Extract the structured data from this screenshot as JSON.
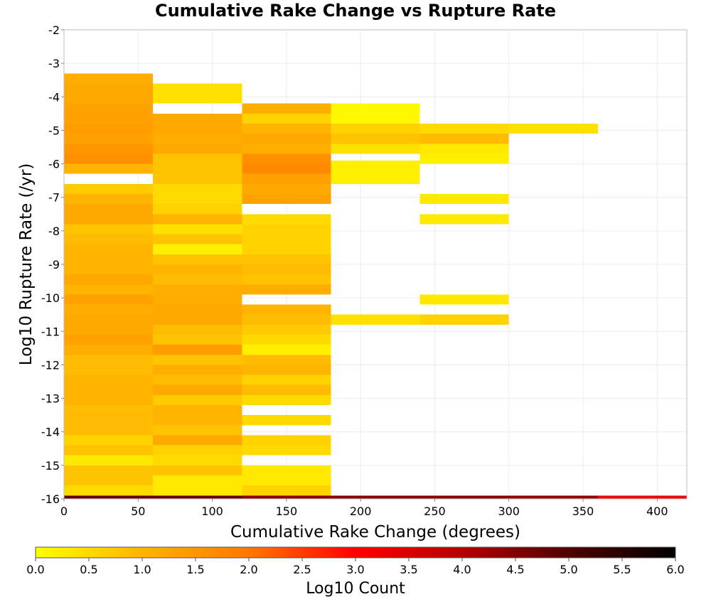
{
  "chart_data": {
    "type": "heatmap",
    "title": "Cumulative Rake Change vs Rupture Rate",
    "xlabel": "Cumulative Rake Change (degrees)",
    "ylabel": "Log10 Rupture Rate (/yr)",
    "xlim": [
      0,
      420
    ],
    "ylim": [
      -16,
      -2
    ],
    "xticks": [
      0,
      50,
      100,
      150,
      200,
      250,
      300,
      350,
      400
    ],
    "yticks": [
      -2,
      -3,
      -4,
      -5,
      -6,
      -7,
      -8,
      -9,
      -10,
      -11,
      -12,
      -13,
      -14,
      -15,
      -16
    ],
    "x_bin_width": 60,
    "y_bin_height": 0.3,
    "grid": true,
    "colorbar": {
      "label": "Log10 Count",
      "min": 0.0,
      "max": 6.0,
      "ticks": [
        "0.0",
        "0.5",
        "1.0",
        "1.5",
        "2.0",
        "2.5",
        "3.0",
        "3.5",
        "4.0",
        "4.5",
        "5.0",
        "5.5",
        "6.0"
      ],
      "colors": [
        "#ffff00",
        "#ffb400",
        "#ff7800",
        "#ff0000",
        "#b40000",
        "#500000",
        "#000000"
      ]
    },
    "columns": [
      {
        "x0": 0,
        "x1": 60,
        "cells": [
          [
            -3.6,
            -3.3,
            1.1
          ],
          [
            -3.9,
            -3.6,
            1.2
          ],
          [
            -4.2,
            -3.9,
            1.2
          ],
          [
            -4.5,
            -4.2,
            1.3
          ],
          [
            -4.8,
            -4.5,
            1.3
          ],
          [
            -5.1,
            -4.8,
            1.4
          ],
          [
            -5.4,
            -5.1,
            1.3
          ],
          [
            -5.7,
            -5.4,
            1.5
          ],
          [
            -6.0,
            -5.7,
            1.6
          ],
          [
            -6.3,
            -6.0,
            1.0
          ],
          [
            -6.9,
            -6.6,
            0.7
          ],
          [
            -7.2,
            -6.9,
            1.0
          ],
          [
            -7.5,
            -7.2,
            1.2
          ],
          [
            -7.8,
            -7.5,
            1.2
          ],
          [
            -8.1,
            -7.8,
            0.8
          ],
          [
            -8.4,
            -8.1,
            0.9
          ],
          [
            -8.7,
            -8.4,
            1.0
          ],
          [
            -9.0,
            -8.7,
            1.0
          ],
          [
            -9.3,
            -9.0,
            1.0
          ],
          [
            -9.6,
            -9.3,
            1.2
          ],
          [
            -9.9,
            -9.6,
            1.0
          ],
          [
            -10.2,
            -9.9,
            1.3
          ],
          [
            -10.5,
            -10.2,
            1.1
          ],
          [
            -10.8,
            -10.5,
            1.2
          ],
          [
            -11.1,
            -10.8,
            1.2
          ],
          [
            -11.4,
            -11.1,
            1.3
          ],
          [
            -11.7,
            -11.4,
            1.1
          ],
          [
            -12.0,
            -11.7,
            0.9
          ],
          [
            -12.3,
            -12.0,
            0.9
          ],
          [
            -12.6,
            -12.3,
            1.0
          ],
          [
            -12.9,
            -12.6,
            1.0
          ],
          [
            -13.2,
            -12.9,
            1.0
          ],
          [
            -13.5,
            -13.2,
            0.9
          ],
          [
            -13.8,
            -13.5,
            0.9
          ],
          [
            -14.1,
            -13.8,
            0.9
          ],
          [
            -14.4,
            -14.1,
            0.6
          ],
          [
            -14.7,
            -14.4,
            0.8
          ],
          [
            -15.0,
            -14.7,
            0.3
          ],
          [
            -15.3,
            -15.0,
            0.8
          ],
          [
            -15.6,
            -15.3,
            0.8
          ],
          [
            -15.9,
            -15.6,
            0.5
          ],
          [
            -16.0,
            -15.9,
            4.8
          ]
        ]
      },
      {
        "x0": 60,
        "x1": 120,
        "cells": [
          [
            -4.2,
            -3.6,
            0.4
          ],
          [
            -4.8,
            -4.5,
            1.2
          ],
          [
            -5.1,
            -4.8,
            1.2
          ],
          [
            -5.4,
            -5.1,
            1.1
          ],
          [
            -5.7,
            -5.4,
            1.2
          ],
          [
            -6.0,
            -5.7,
            0.8
          ],
          [
            -6.3,
            -6.0,
            0.8
          ],
          [
            -6.6,
            -6.3,
            0.8
          ],
          [
            -6.9,
            -6.6,
            0.5
          ],
          [
            -7.2,
            -6.9,
            0.5
          ],
          [
            -7.5,
            -7.2,
            0.6
          ],
          [
            -7.8,
            -7.5,
            1.0
          ],
          [
            -8.1,
            -7.8,
            0.4
          ],
          [
            -8.4,
            -8.1,
            0.8
          ],
          [
            -8.7,
            -8.4,
            0.2
          ],
          [
            -9.0,
            -8.7,
            0.8
          ],
          [
            -9.3,
            -9.0,
            1.0
          ],
          [
            -9.6,
            -9.3,
            0.9
          ],
          [
            -9.9,
            -9.6,
            1.1
          ],
          [
            -10.2,
            -9.9,
            1.1
          ],
          [
            -10.5,
            -10.2,
            1.2
          ],
          [
            -10.8,
            -10.5,
            1.2
          ],
          [
            -11.1,
            -10.8,
            0.9
          ],
          [
            -11.4,
            -11.1,
            0.8
          ],
          [
            -11.7,
            -11.4,
            1.4
          ],
          [
            -12.0,
            -11.7,
            0.8
          ],
          [
            -12.3,
            -12.0,
            1.1
          ],
          [
            -12.6,
            -12.3,
            0.9
          ],
          [
            -12.9,
            -12.6,
            1.2
          ],
          [
            -13.2,
            -12.9,
            0.7
          ],
          [
            -13.5,
            -13.2,
            1.0
          ],
          [
            -13.8,
            -13.5,
            1.0
          ],
          [
            -14.1,
            -13.8,
            0.8
          ],
          [
            -14.4,
            -14.1,
            1.2
          ],
          [
            -14.7,
            -14.4,
            0.6
          ],
          [
            -15.0,
            -14.7,
            0.5
          ],
          [
            -15.3,
            -15.0,
            0.8
          ],
          [
            -15.6,
            -15.3,
            0.3
          ],
          [
            -15.9,
            -15.6,
            0.3
          ],
          [
            -16.0,
            -15.9,
            4.8
          ]
        ]
      },
      {
        "x0": 120,
        "x1": 180,
        "cells": [
          [
            -4.5,
            -4.2,
            1.1
          ],
          [
            -4.8,
            -4.5,
            0.6
          ],
          [
            -5.1,
            -4.8,
            1.0
          ],
          [
            -5.4,
            -5.1,
            1.2
          ],
          [
            -5.7,
            -5.4,
            1.1
          ],
          [
            -6.0,
            -5.7,
            1.6
          ],
          [
            -6.3,
            -6.0,
            1.7
          ],
          [
            -6.6,
            -6.3,
            1.3
          ],
          [
            -6.9,
            -6.6,
            1.2
          ],
          [
            -7.2,
            -6.9,
            1.3
          ],
          [
            -7.8,
            -7.5,
            0.5
          ],
          [
            -8.1,
            -7.8,
            0.6
          ],
          [
            -8.4,
            -8.1,
            0.6
          ],
          [
            -8.7,
            -8.4,
            0.6
          ],
          [
            -9.0,
            -8.7,
            0.8
          ],
          [
            -9.3,
            -9.0,
            0.9
          ],
          [
            -9.6,
            -9.3,
            0.8
          ],
          [
            -9.9,
            -9.6,
            1.1
          ],
          [
            -10.5,
            -10.2,
            1.0
          ],
          [
            -10.8,
            -10.5,
            0.9
          ],
          [
            -11.1,
            -10.8,
            0.7
          ],
          [
            -11.4,
            -11.1,
            0.5
          ],
          [
            -11.7,
            -11.4,
            0.2
          ],
          [
            -12.0,
            -11.7,
            0.9
          ],
          [
            -12.3,
            -12.0,
            1.0
          ],
          [
            -12.6,
            -12.3,
            0.6
          ],
          [
            -12.9,
            -12.6,
            0.9
          ],
          [
            -13.2,
            -12.9,
            0.5
          ],
          [
            -13.8,
            -13.5,
            0.5
          ],
          [
            -14.4,
            -14.1,
            0.6
          ],
          [
            -14.7,
            -14.4,
            0.5
          ],
          [
            -15.3,
            -15.0,
            0.3
          ],
          [
            -15.6,
            -15.3,
            0.3
          ],
          [
            -15.9,
            -15.6,
            0.6
          ],
          [
            -16.0,
            -15.9,
            4.4
          ]
        ]
      },
      {
        "x0": 180,
        "x1": 240,
        "cells": [
          [
            -4.8,
            -4.2,
            0.1
          ],
          [
            -5.1,
            -4.8,
            0.6
          ],
          [
            -5.4,
            -5.1,
            0.8
          ],
          [
            -5.7,
            -5.4,
            0.4
          ],
          [
            -6.6,
            -5.9,
            0.2
          ],
          [
            -10.8,
            -10.5,
            0.4
          ],
          [
            -16.0,
            -15.9,
            4.4
          ]
        ]
      },
      {
        "x0": 240,
        "x1": 300,
        "cells": [
          [
            -5.1,
            -4.8,
            0.5
          ],
          [
            -5.4,
            -5.1,
            0.9
          ],
          [
            -5.7,
            -5.4,
            0.3
          ],
          [
            -6.0,
            -5.7,
            0.2
          ],
          [
            -7.2,
            -6.9,
            0.3
          ],
          [
            -7.8,
            -7.5,
            0.3
          ],
          [
            -10.2,
            -9.9,
            0.3
          ],
          [
            -10.8,
            -10.5,
            0.6
          ],
          [
            -16.0,
            -15.9,
            4.4
          ]
        ]
      },
      {
        "x0": 300,
        "x1": 360,
        "cells": [
          [
            -5.1,
            -4.8,
            0.4
          ],
          [
            -16.0,
            -15.9,
            4.3
          ]
        ]
      },
      {
        "x0": 360,
        "x1": 420,
        "cells": [
          [
            -16.0,
            -15.9,
            3.2
          ]
        ]
      }
    ]
  }
}
